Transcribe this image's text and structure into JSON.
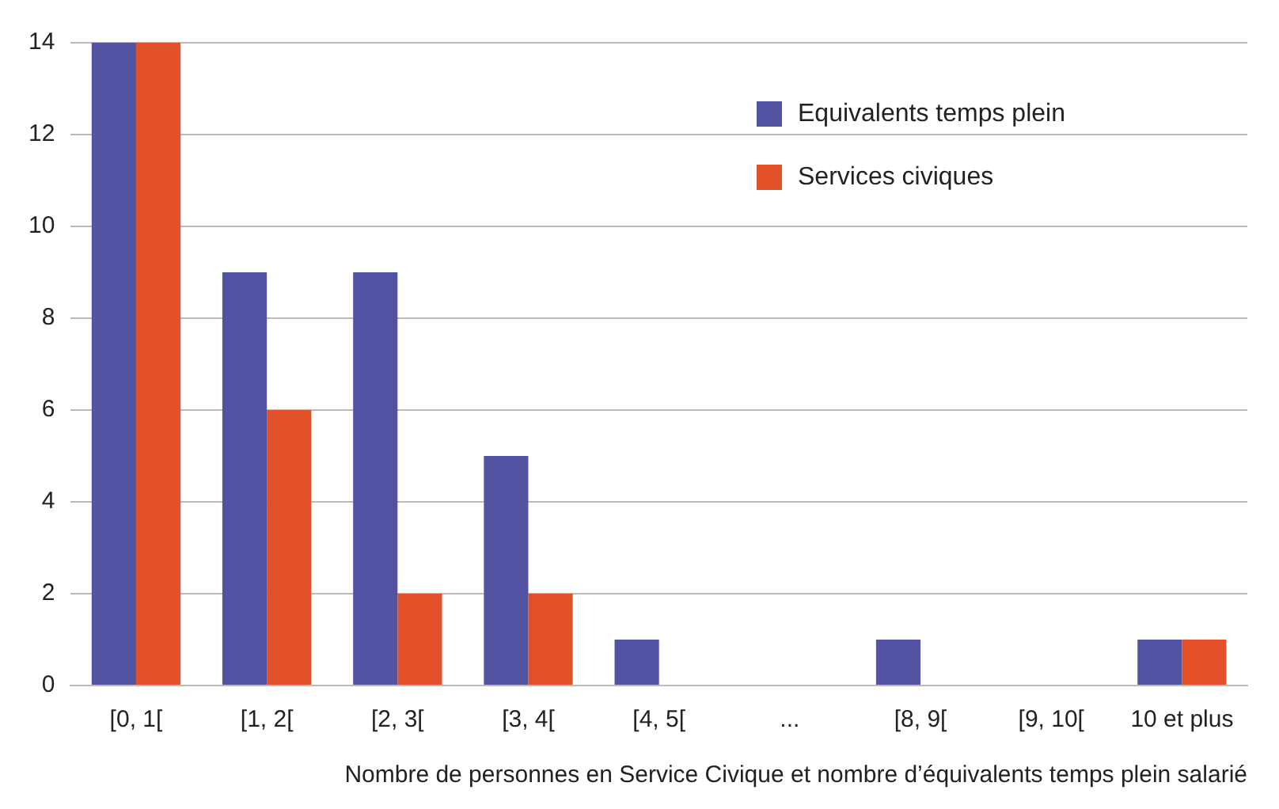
{
  "chart_data": {
    "type": "bar",
    "xlabel": "Nombre de personnes en Service Civique et nombre d’équivalents temps plein salarié",
    "categories": [
      "[0, 1[",
      "[1, 2[",
      "[2, 3[",
      "[3, 4[",
      "[4, 5[",
      "...",
      "[8, 9[",
      "[9, 10[",
      "10 et plus"
    ],
    "series": [
      {
        "name": "Equivalents temps plein",
        "color": "#5254a3",
        "values": [
          14,
          9,
          9,
          5,
          1,
          0,
          1,
          0,
          1
        ]
      },
      {
        "name": "Services civiques",
        "color": "#e2512a",
        "values": [
          14,
          6,
          2,
          2,
          0,
          0,
          0,
          0,
          1
        ]
      }
    ],
    "ylim": [
      0,
      14
    ],
    "yticks": [
      0,
      2,
      4,
      6,
      8,
      10,
      12,
      14
    ],
    "grid": "y",
    "legend": "top right"
  }
}
